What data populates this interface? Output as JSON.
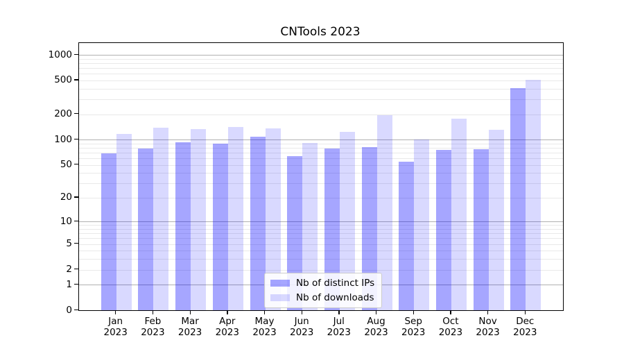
{
  "chart_data": {
    "type": "bar",
    "title": "CNTools 2023",
    "categories": [
      {
        "month": "Jan",
        "year": "2023"
      },
      {
        "month": "Feb",
        "year": "2023"
      },
      {
        "month": "Mar",
        "year": "2023"
      },
      {
        "month": "Apr",
        "year": "2023"
      },
      {
        "month": "May",
        "year": "2023"
      },
      {
        "month": "Jun",
        "year": "2023"
      },
      {
        "month": "Jul",
        "year": "2023"
      },
      {
        "month": "Aug",
        "year": "2023"
      },
      {
        "month": "Sep",
        "year": "2023"
      },
      {
        "month": "Oct",
        "year": "2023"
      },
      {
        "month": "Nov",
        "year": "2023"
      },
      {
        "month": "Dec",
        "year": "2023"
      }
    ],
    "series": [
      {
        "name": "Nb of distinct IPs",
        "color": "rgba(0,0,255,0.35)",
        "values": [
          69,
          79,
          93,
          90,
          108,
          64,
          79,
          82,
          55,
          76,
          77,
          405
        ]
      },
      {
        "name": "Nb of downloads",
        "color": "rgba(0,0,255,0.15)",
        "values": [
          117,
          138,
          134,
          140,
          136,
          91,
          124,
          193,
          100,
          176,
          132,
          510
        ]
      }
    ],
    "y_ticks": [
      0,
      1,
      2,
      5,
      10,
      20,
      50,
      100,
      200,
      500,
      1000
    ],
    "y_scale": "log10(v+1)",
    "ylim": [
      0,
      1380
    ],
    "xlabel": "",
    "ylabel": "",
    "grid": "horizontal",
    "legend_position": "lower center"
  },
  "colors": {
    "grid_major": "#b0b0b0",
    "grid_minor": "#e9e9e9",
    "axis": "#000000",
    "background": "#ffffff"
  }
}
